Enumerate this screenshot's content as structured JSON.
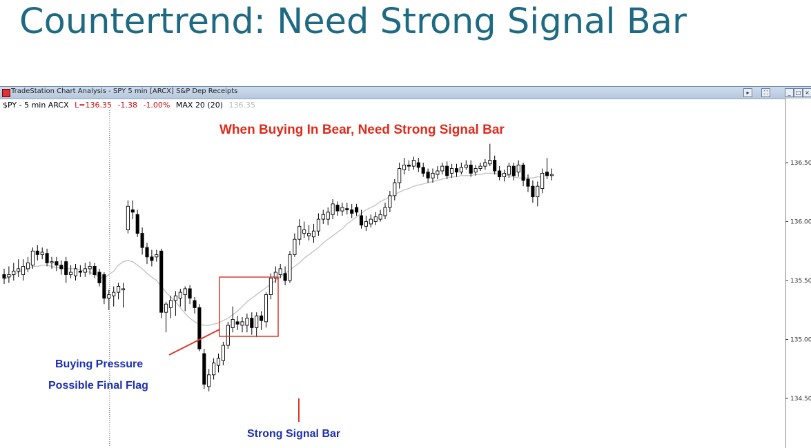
{
  "slide": {
    "title": "Countertrend: Need Strong Signal Bar"
  },
  "window": {
    "title": "TradeStation Chart Analysis - SPY 5 min [ARCX] S&P Dep Receipts",
    "buttons": [
      "▸",
      "⛶",
      "_",
      "□",
      "×"
    ]
  },
  "status_line": {
    "symbol": "$PY - 5 min  ARCX",
    "last": "L=136.35",
    "change": "-1.38",
    "change_pct": "-1.00%",
    "indicator": "MAX 20 (20)",
    "indicator_value": "136.35"
  },
  "colors": {
    "title": "#1e6a82",
    "annotation_red": "#e02a1a",
    "annotation_blue": "#1c2fb0",
    "box": "#d83a2a",
    "ma_line": "#c8c8c8"
  },
  "chart_data": {
    "type": "candlestick",
    "title": "When Buying In Bear, Need Strong Signal Bar",
    "ylim": [
      134.35,
      136.8
    ],
    "y_ticks": [
      "136.50",
      "136.00",
      "135.50",
      "135.00",
      "134.50"
    ],
    "y_tick_values": [
      136.5,
      136.0,
      135.5,
      135.0,
      134.5
    ],
    "session_break_index": 22,
    "candles": [
      [
        135.55,
        135.52,
        135.6,
        135.47
      ],
      [
        135.53,
        135.55,
        135.62,
        135.48
      ],
      [
        135.55,
        135.58,
        135.65,
        135.5
      ],
      [
        135.58,
        135.6,
        135.68,
        135.53
      ],
      [
        135.55,
        135.62,
        135.68,
        135.5
      ],
      [
        135.6,
        135.65,
        135.7,
        135.57
      ],
      [
        135.63,
        135.75,
        135.78,
        135.6
      ],
      [
        135.75,
        135.72,
        135.8,
        135.67
      ],
      [
        135.72,
        135.74,
        135.78,
        135.68
      ],
      [
        135.73,
        135.65,
        135.77,
        135.62
      ],
      [
        135.65,
        135.66,
        135.7,
        135.6
      ],
      [
        135.66,
        135.63,
        135.7,
        135.58
      ],
      [
        135.63,
        135.6,
        135.67,
        135.55
      ],
      [
        135.66,
        135.55,
        135.7,
        135.48
      ],
      [
        135.55,
        135.57,
        135.63,
        135.52
      ],
      [
        135.54,
        135.6,
        135.64,
        135.5
      ],
      [
        135.58,
        135.57,
        135.63,
        135.53
      ],
      [
        135.57,
        135.6,
        135.65,
        135.53
      ],
      [
        135.6,
        135.62,
        135.66,
        135.55
      ],
      [
        135.62,
        135.55,
        135.65,
        135.52
      ],
      [
        135.57,
        135.48,
        135.6,
        135.45
      ],
      [
        135.55,
        135.35,
        135.57,
        135.3
      ],
      [
        135.35,
        135.38,
        135.42,
        135.25
      ],
      [
        135.37,
        135.4,
        135.45,
        135.28
      ],
      [
        135.4,
        135.45,
        135.48,
        135.34
      ],
      [
        135.42,
        135.43,
        135.48,
        135.27
      ],
      [
        135.93,
        136.13,
        136.18,
        135.9
      ],
      [
        136.1,
        136.08,
        136.18,
        136.02
      ],
      [
        136.06,
        135.9,
        136.1,
        135.87
      ],
      [
        135.9,
        135.78,
        135.95,
        135.72
      ],
      [
        135.78,
        135.7,
        135.82,
        135.64
      ],
      [
        135.7,
        135.67,
        135.76,
        135.62
      ],
      [
        135.7,
        135.72,
        135.76,
        135.66
      ],
      [
        135.75,
        135.23,
        135.77,
        135.18
      ],
      [
        135.23,
        135.3,
        135.32,
        135.06
      ],
      [
        135.27,
        135.33,
        135.37,
        135.18
      ],
      [
        135.33,
        135.37,
        135.41,
        135.2
      ],
      [
        135.35,
        135.4,
        135.43,
        135.28
      ],
      [
        135.38,
        135.43,
        135.45,
        135.24
      ],
      [
        135.43,
        135.35,
        135.46,
        135.3
      ],
      [
        135.33,
        135.27,
        135.36,
        135.22
      ],
      [
        135.27,
        134.92,
        135.3,
        134.9
      ],
      [
        134.88,
        134.62,
        134.92,
        134.58
      ],
      [
        134.6,
        134.7,
        134.75,
        134.56
      ],
      [
        134.7,
        134.8,
        134.84,
        134.66
      ],
      [
        134.78,
        134.84,
        134.88,
        134.72
      ],
      [
        134.82,
        134.95,
        134.98,
        134.78
      ],
      [
        134.95,
        135.12,
        135.15,
        134.92
      ],
      [
        135.1,
        135.17,
        135.28,
        135.06
      ],
      [
        135.15,
        135.13,
        135.2,
        135.08
      ],
      [
        135.12,
        135.15,
        135.19,
        135.06
      ],
      [
        135.12,
        135.18,
        135.22,
        135.06
      ],
      [
        135.18,
        135.1,
        135.23,
        135.04
      ],
      [
        135.1,
        135.2,
        135.23,
        135.02
      ],
      [
        135.2,
        135.16,
        135.24,
        135.08
      ],
      [
        135.15,
        135.38,
        135.4,
        135.1
      ],
      [
        135.38,
        135.52,
        135.56,
        135.34
      ],
      [
        135.52,
        135.57,
        135.62,
        135.48
      ],
      [
        135.55,
        135.6,
        135.64,
        135.52
      ],
      [
        135.56,
        135.5,
        135.62,
        135.46
      ],
      [
        135.5,
        135.72,
        135.75,
        135.48
      ],
      [
        135.72,
        135.85,
        135.9,
        135.7
      ],
      [
        135.85,
        135.96,
        136.02,
        135.8
      ],
      [
        135.9,
        135.93,
        136.0,
        135.86
      ],
      [
        135.88,
        135.9,
        135.97,
        135.84
      ],
      [
        135.87,
        135.92,
        135.98,
        135.82
      ],
      [
        135.92,
        136.02,
        136.07,
        135.88
      ],
      [
        136.02,
        136.06,
        136.1,
        135.98
      ],
      [
        136.02,
        136.08,
        136.12,
        135.97
      ],
      [
        136.06,
        136.15,
        136.19,
        136.02
      ],
      [
        136.14,
        136.09,
        136.17,
        136.05
      ],
      [
        136.09,
        136.12,
        136.16,
        136.05
      ],
      [
        136.11,
        136.1,
        136.16,
        136.06
      ],
      [
        136.1,
        136.07,
        136.15,
        136.03
      ],
      [
        136.12,
        136.08,
        136.15,
        136.05
      ],
      [
        136.05,
        135.97,
        136.1,
        135.94
      ],
      [
        135.96,
        136.0,
        136.05,
        135.92
      ],
      [
        135.98,
        136.02,
        136.06,
        135.95
      ],
      [
        136.0,
        136.04,
        136.08,
        135.97
      ],
      [
        136.02,
        136.06,
        136.1,
        136.0
      ],
      [
        136.05,
        136.12,
        136.16,
        136.02
      ],
      [
        136.12,
        136.22,
        136.26,
        136.08
      ],
      [
        136.22,
        136.33,
        136.36,
        136.18
      ],
      [
        136.33,
        136.45,
        136.5,
        136.28
      ],
      [
        136.44,
        136.48,
        136.54,
        136.4
      ],
      [
        136.48,
        136.47,
        136.52,
        136.43
      ],
      [
        136.47,
        136.52,
        136.55,
        136.44
      ],
      [
        136.5,
        136.46,
        136.54,
        136.42
      ],
      [
        136.46,
        136.41,
        136.5,
        136.38
      ],
      [
        136.42,
        136.37,
        136.45,
        136.33
      ],
      [
        136.37,
        136.41,
        136.45,
        136.33
      ],
      [
        136.4,
        136.43,
        136.47,
        136.36
      ],
      [
        136.43,
        136.47,
        136.5,
        136.4
      ],
      [
        136.47,
        136.39,
        136.51,
        136.36
      ],
      [
        136.41,
        136.45,
        136.49,
        136.37
      ],
      [
        136.45,
        136.42,
        136.49,
        136.38
      ],
      [
        136.42,
        136.46,
        136.5,
        136.4
      ],
      [
        136.46,
        136.48,
        136.52,
        136.44
      ],
      [
        136.48,
        136.41,
        136.52,
        136.38
      ],
      [
        136.42,
        136.45,
        136.48,
        136.39
      ],
      [
        136.45,
        136.47,
        136.5,
        136.43
      ],
      [
        136.47,
        136.5,
        136.53,
        136.44
      ],
      [
        136.49,
        136.52,
        136.66,
        136.47
      ],
      [
        136.52,
        136.43,
        136.56,
        136.4
      ],
      [
        136.43,
        136.38,
        136.47,
        136.35
      ],
      [
        136.38,
        136.41,
        136.44,
        136.34
      ],
      [
        136.4,
        136.47,
        136.5,
        136.37
      ],
      [
        136.47,
        136.39,
        136.5,
        136.35
      ],
      [
        136.42,
        136.48,
        136.52,
        136.38
      ],
      [
        136.48,
        136.35,
        136.5,
        136.3
      ],
      [
        136.36,
        136.3,
        136.4,
        136.25
      ],
      [
        136.3,
        136.21,
        136.35,
        136.16
      ],
      [
        136.21,
        136.3,
        136.34,
        136.13
      ],
      [
        136.28,
        136.41,
        136.45,
        136.24
      ],
      [
        136.42,
        136.39,
        136.54,
        136.36
      ],
      [
        136.39,
        136.4,
        136.45,
        136.35
      ]
    ],
    "moving_average": {
      "period": 20,
      "values": [
        135.51,
        135.53,
        135.55,
        135.57,
        135.59,
        135.6,
        135.62,
        135.62,
        135.63,
        135.63,
        135.62,
        135.61,
        135.61,
        135.6,
        135.6,
        135.6,
        135.59,
        135.58,
        135.57,
        135.55,
        135.53,
        135.52,
        135.55,
        135.58,
        135.63,
        135.66,
        135.67,
        135.66,
        135.63,
        135.6,
        135.56,
        135.53,
        135.5,
        135.45,
        135.4,
        135.36,
        135.32,
        135.27,
        135.22,
        135.18,
        135.15,
        135.13,
        135.12,
        135.12,
        135.13,
        135.14,
        135.16,
        135.18,
        135.21,
        135.24,
        135.28,
        135.32,
        135.35,
        135.38,
        135.41,
        135.44,
        135.47,
        135.5,
        135.53,
        135.56,
        135.59,
        135.62,
        135.65,
        135.69,
        135.72,
        135.75,
        135.78,
        135.82,
        135.85,
        135.88,
        135.91,
        135.94,
        135.98,
        136.01,
        136.04,
        136.07,
        136.1,
        136.12,
        136.14,
        136.17,
        136.19,
        136.21,
        136.23,
        136.25,
        136.27,
        136.28,
        136.3,
        136.31,
        136.32,
        136.33,
        136.34,
        136.35,
        136.36,
        136.37,
        136.38,
        136.38,
        136.39,
        136.39,
        136.39,
        136.4,
        136.4,
        136.41,
        136.41,
        136.41,
        136.4,
        136.4,
        136.39,
        136.38,
        136.37,
        136.37,
        136.37,
        136.37,
        136.38,
        136.38
      ]
    },
    "annotations": [
      {
        "text": "Buying Pressure"
      },
      {
        "text": "Possible Final Flag"
      },
      {
        "text": "Strong Signal Bar"
      }
    ]
  }
}
